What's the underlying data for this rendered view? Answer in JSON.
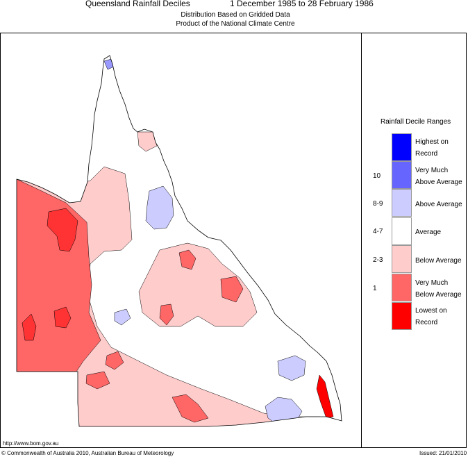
{
  "header": {
    "title": "Queensland Rainfall Deciles",
    "dates": "1 December 1985 to 28 February 1986",
    "subtitle1": "Distribution Based on Gridded Data",
    "subtitle2": "Product of the National Climate Centre"
  },
  "legend": {
    "title": "Rainfall Decile Ranges",
    "items": [
      {
        "code": "",
        "line1": "Highest on",
        "line2": "Record",
        "color": "#0000ff"
      },
      {
        "code": "10",
        "line1": "Very Much",
        "line2": "Above Average",
        "color": "#6666ff"
      },
      {
        "code": "8-9",
        "line1": "Above Average",
        "line2": "",
        "color": "#ccccff"
      },
      {
        "code": "4-7",
        "line1": "Average",
        "line2": "",
        "color": "#ffffff"
      },
      {
        "code": "2-3",
        "line1": "Below Average",
        "line2": "",
        "color": "#ffcccc"
      },
      {
        "code": "1",
        "line1": "Very Much",
        "line2": "Below Average",
        "color": "#ff6666"
      },
      {
        "code": "",
        "line1": "Lowest on",
        "line2": "Record",
        "color": "#ff0000"
      }
    ]
  },
  "footer": {
    "url": "http://www.bom.gov.au",
    "copyright": "© Commonwealth of Australia 2010, Australian Bureau of Meteorology",
    "issued": "Issued: 21/01/2010"
  }
}
